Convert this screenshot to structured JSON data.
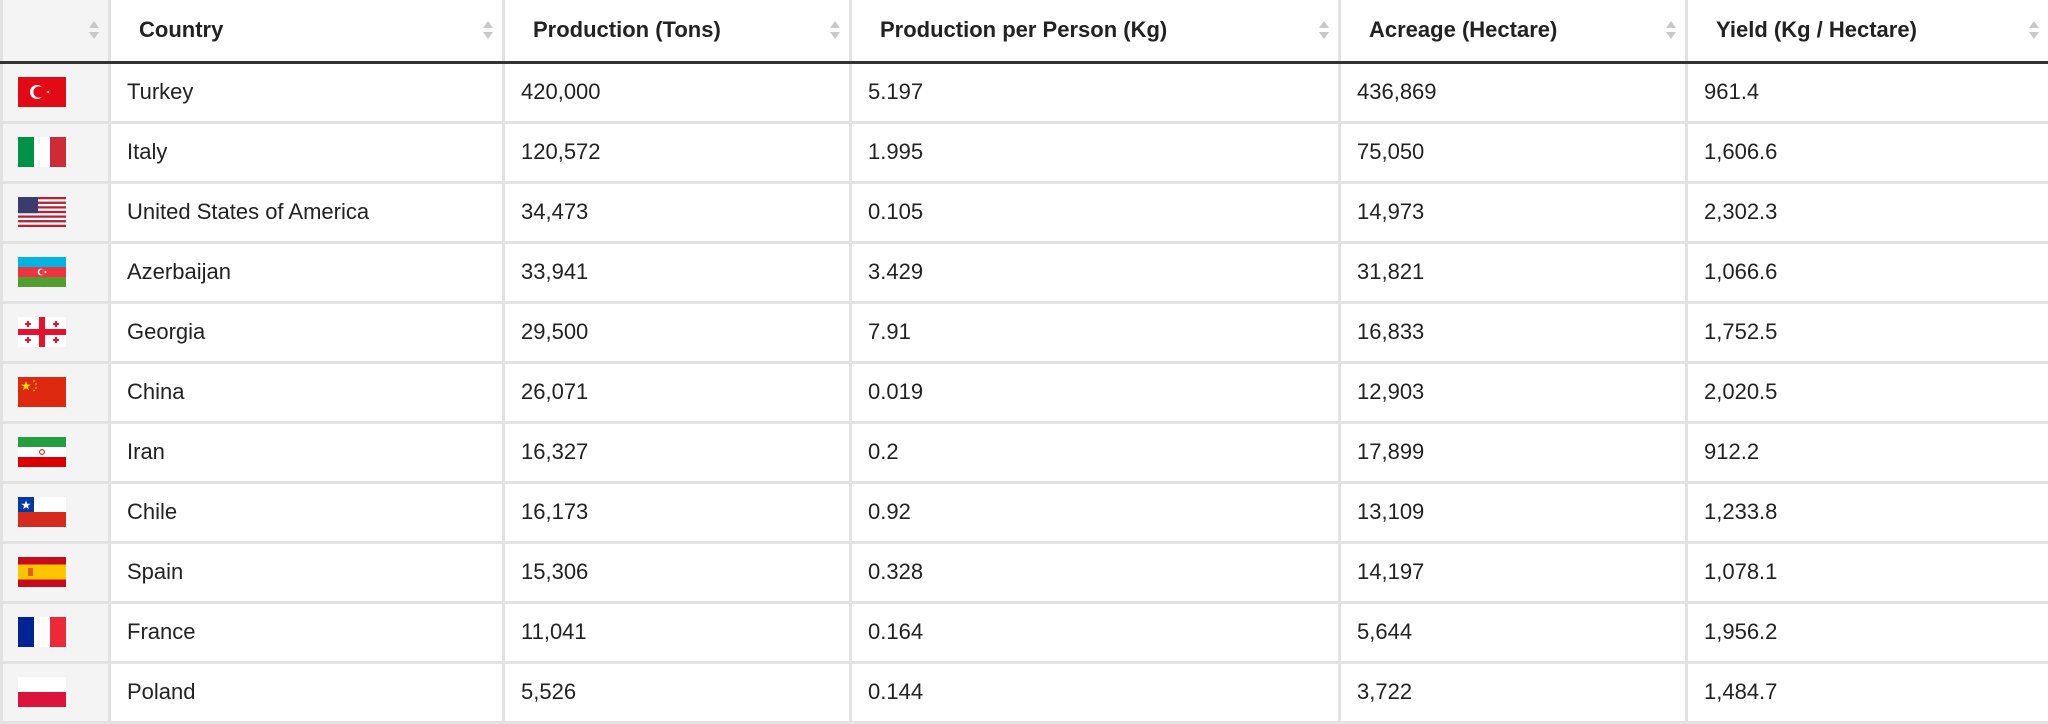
{
  "table": {
    "headers": [
      "",
      "Country",
      "Production (Tons)",
      "Production per Person (Kg)",
      "Acreage (Hectare)",
      "Yield (Kg / Hectare)"
    ],
    "rows": [
      {
        "flag": "turkey-flag-icon",
        "country": "Turkey",
        "production": "420,000",
        "per_person": "5.197",
        "acreage": "436,869",
        "yield": "961.4"
      },
      {
        "flag": "italy-flag-icon",
        "country": "Italy",
        "production": "120,572",
        "per_person": "1.995",
        "acreage": "75,050",
        "yield": "1,606.6"
      },
      {
        "flag": "usa-flag-icon",
        "country": "United States of America",
        "production": "34,473",
        "per_person": "0.105",
        "acreage": "14,973",
        "yield": "2,302.3"
      },
      {
        "flag": "azerbaijan-flag-icon",
        "country": "Azerbaijan",
        "production": "33,941",
        "per_person": "3.429",
        "acreage": "31,821",
        "yield": "1,066.6"
      },
      {
        "flag": "georgia-flag-icon",
        "country": "Georgia",
        "production": "29,500",
        "per_person": "7.91",
        "acreage": "16,833",
        "yield": "1,752.5"
      },
      {
        "flag": "china-flag-icon",
        "country": "China",
        "production": "26,071",
        "per_person": "0.019",
        "acreage": "12,903",
        "yield": "2,020.5"
      },
      {
        "flag": "iran-flag-icon",
        "country": "Iran",
        "production": "16,327",
        "per_person": "0.2",
        "acreage": "17,899",
        "yield": "912.2"
      },
      {
        "flag": "chile-flag-icon",
        "country": "Chile",
        "production": "16,173",
        "per_person": "0.92",
        "acreage": "13,109",
        "yield": "1,233.8"
      },
      {
        "flag": "spain-flag-icon",
        "country": "Spain",
        "production": "15,306",
        "per_person": "0.328",
        "acreage": "14,197",
        "yield": "1,078.1"
      },
      {
        "flag": "france-flag-icon",
        "country": "France",
        "production": "11,041",
        "per_person": "0.164",
        "acreage": "5,644",
        "yield": "1,956.2"
      },
      {
        "flag": "poland-flag-icon",
        "country": "Poland",
        "production": "5,526",
        "per_person": "0.144",
        "acreage": "3,722",
        "yield": "1,484.7"
      }
    ]
  },
  "colors": {
    "header_text": "#222222",
    "grid_line": "#e2e2e2",
    "header_rule": "#333333",
    "flag_column_bg": "#f4f4f4",
    "sort_arrow": "#c8c8c8"
  }
}
